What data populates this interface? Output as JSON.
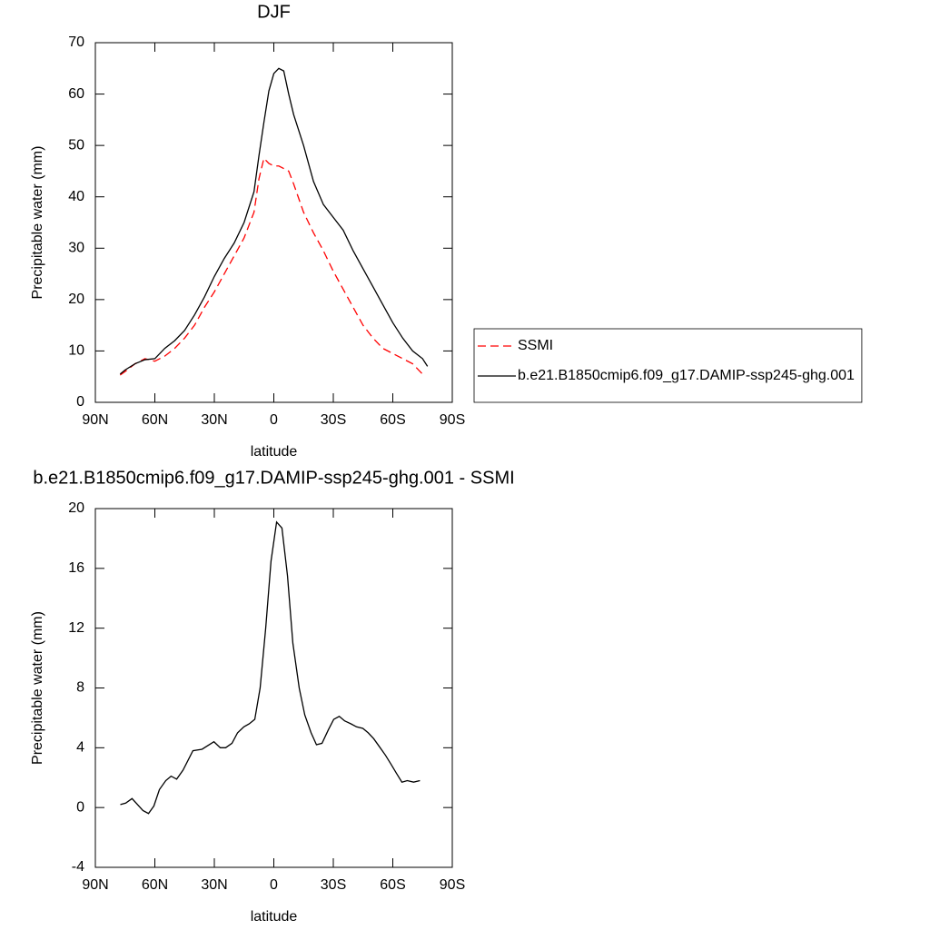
{
  "chart_data": [
    {
      "type": "line",
      "title": "DJF",
      "x_label": "latitude",
      "y_label": "Precipitable water (mm)",
      "x": [
        77.5,
        75,
        70,
        65,
        60,
        55,
        50,
        45,
        40,
        35,
        30,
        25,
        20,
        15,
        10,
        7.5,
        5,
        2.5,
        0,
        -2.5,
        -5,
        -7.5,
        -10,
        -15,
        -20,
        -25,
        -30,
        -35,
        -40,
        -45,
        -50,
        -55,
        -60,
        -65,
        -70,
        -75,
        -77.5
      ],
      "series": [
        {
          "name": "SSMI",
          "color": "#ff0000",
          "line_style": "dashed",
          "values": [
            5.3,
            6,
            7.5,
            8.5,
            8,
            9,
            10.5,
            12.5,
            15,
            18.5,
            21.5,
            25,
            28.5,
            32,
            37,
            43.5,
            47.5,
            46.5,
            46,
            46,
            45.5,
            45,
            42.5,
            37,
            33,
            29.5,
            25.5,
            22,
            18.5,
            15,
            12.5,
            10.5,
            9.5,
            8.5,
            7.5,
            5.5,
            null
          ]
        },
        {
          "name": "b.e21.B1850cmip6.f09_g17.DAMIP-ssp245-ghg.001",
          "color": "#000000",
          "line_style": "solid",
          "values": [
            5.5,
            6.3,
            7.5,
            8.3,
            8.5,
            10.5,
            12,
            14,
            17,
            20.5,
            24.5,
            28,
            31,
            35,
            41,
            48,
            54.5,
            60.6,
            64,
            65,
            64.5,
            60,
            56,
            50,
            43,
            38.5,
            36,
            33.5,
            29.5,
            26,
            22.5,
            19,
            15.5,
            12.5,
            10,
            8.5,
            7
          ]
        }
      ],
      "xlim": [
        90,
        -90
      ],
      "xticks": [
        {
          "value": 90,
          "label": "90N"
        },
        {
          "value": 60,
          "label": "60N"
        },
        {
          "value": 30,
          "label": "30N"
        },
        0,
        {
          "value": -30,
          "label": "30S"
        },
        {
          "value": -60,
          "label": "60S"
        },
        {
          "value": -90,
          "label": "90S"
        }
      ],
      "ylim": [
        0,
        70
      ],
      "yticks": [
        0,
        10,
        20,
        30,
        40,
        50,
        60,
        70
      ],
      "legend": "right"
    },
    {
      "type": "line",
      "title": "b.e21.B1850cmip6.f09_g17.DAMIP-ssp245-ghg.001 - SSMI",
      "x_label": "latitude",
      "y_label": "Precipitable water (mm)",
      "x": [
        77.4,
        74.7,
        71.5,
        66,
        63.2,
        60.5,
        57.7,
        54.5,
        51.8,
        49,
        45.8,
        40.8,
        36.2,
        30.2,
        27,
        24.3,
        21.1,
        18.3,
        15.1,
        12.4,
        9.6,
        6.9,
        4.1,
        1.4,
        -1.4,
        -4.1,
        -6.9,
        -9.6,
        -12.8,
        -15.6,
        -18.8,
        -21.5,
        -24.3,
        -27.5,
        -30.2,
        -33,
        -35.7,
        -38.9,
        -41.7,
        -44.9,
        -47.6,
        -50.4,
        -53.1,
        -56.3,
        -59.1,
        -61.8,
        -64.6,
        -67.3,
        -70.5,
        -73.7
      ],
      "series": [
        {
          "color": "#000000",
          "line_style": "solid",
          "values": [
            0.2,
            0.3,
            0.6,
            -0.2,
            -0.4,
            0.1,
            1.2,
            1.8,
            2.1,
            1.9,
            2.5,
            3.8,
            3.9,
            4.4,
            4.0,
            4.0,
            4.3,
            5.0,
            5.4,
            5.6,
            5.9,
            8.0,
            12,
            16.5,
            19.1,
            18.7,
            15.5,
            11,
            8,
            6.2,
            5,
            4.2,
            4.3,
            5.2,
            5.9,
            6.1,
            5.8,
            5.6,
            5.4,
            5.3,
            5.0,
            4.6,
            4.1,
            3.5,
            2.9,
            2.3,
            1.7,
            1.8,
            1.7,
            1.8
          ]
        }
      ],
      "xlim": [
        90,
        -90
      ],
      "xticks": [
        {
          "value": 90,
          "label": "90N"
        },
        {
          "value": 60,
          "label": "60N"
        },
        {
          "value": 30,
          "label": "30N"
        },
        0,
        {
          "value": -30,
          "label": "30S"
        },
        {
          "value": -60,
          "label": "60S"
        },
        {
          "value": -90,
          "label": "90S"
        }
      ],
      "ylim": [
        -4,
        20
      ],
      "yticks": [
        -4,
        0,
        4,
        8,
        12,
        16,
        20
      ]
    }
  ]
}
